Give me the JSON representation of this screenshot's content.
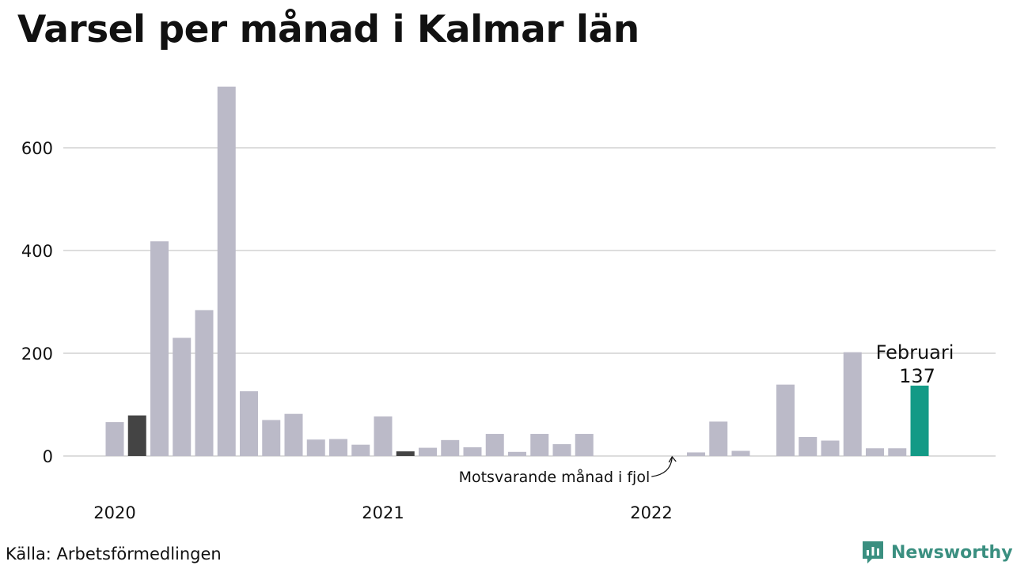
{
  "title": "Varsel per månad i Kalmar län",
  "source": "Källa: Arbetsförmedlingen",
  "brand": {
    "name": "Newsworthy",
    "icon": "bar-chart-bubble-icon"
  },
  "colors": {
    "bar": "#bbbac8",
    "prior_year_bar": "#444444",
    "highlight_bar": "#139a86",
    "grid": "#dddddd",
    "brand": "#3a8f80"
  },
  "chart_data": {
    "type": "bar",
    "title": "Varsel per månad i Kalmar län",
    "xlabel": "",
    "ylabel": "",
    "ylim": [
      0,
      720
    ],
    "yticks": [
      0,
      200,
      400,
      600
    ],
    "grid": true,
    "x_year_labels": [
      {
        "label": "2020",
        "index": 0
      },
      {
        "label": "2021",
        "index": 12
      },
      {
        "label": "2022",
        "index": 24
      }
    ],
    "values": [
      66,
      79,
      418,
      230,
      284,
      719,
      126,
      70,
      82,
      32,
      33,
      22,
      77,
      9,
      16,
      31,
      17,
      43,
      8,
      43,
      23,
      43,
      0,
      0,
      0,
      0,
      7,
      67,
      10,
      0,
      139,
      37,
      30,
      202,
      15,
      15,
      137
    ],
    "prior_year_indices": [
      1,
      13
    ],
    "highlight": {
      "index": 36,
      "label": "Februari",
      "value": "137"
    },
    "annotation": {
      "text": "Motsvarande månad i fjol",
      "index": 25
    }
  }
}
